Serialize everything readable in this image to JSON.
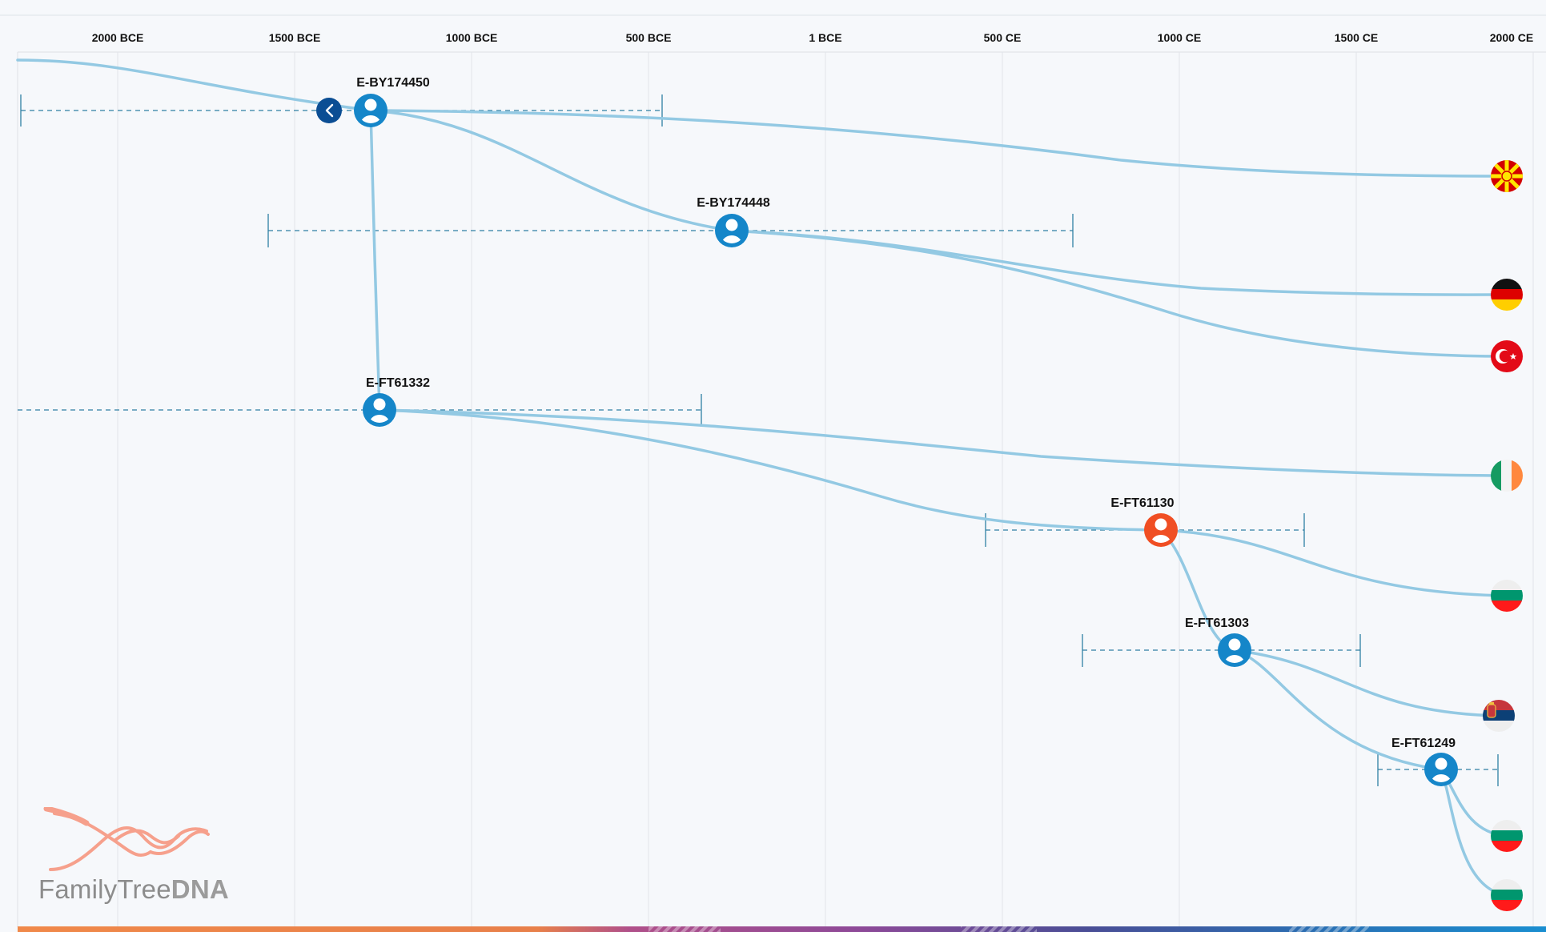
{
  "axis": {
    "ticks": [
      "2000 BCE",
      "1500 BCE",
      "1000 BCE",
      "500 BCE",
      "1 BCE",
      "500 CE",
      "1000 CE",
      "1500 CE",
      "2000 CE"
    ]
  },
  "nodes": [
    {
      "id": "E-BY174450",
      "label": "E-BY174450",
      "color": "#1586c9"
    },
    {
      "id": "E-BY174448",
      "label": "E-BY174448",
      "color": "#1586c9"
    },
    {
      "id": "E-FT61332",
      "label": "E-FT61332",
      "color": "#1586c9"
    },
    {
      "id": "E-FT61130",
      "label": "E-FT61130",
      "color": "#f04e23"
    },
    {
      "id": "E-FT61303",
      "label": "E-FT61303",
      "color": "#1586c9"
    },
    {
      "id": "E-FT61249",
      "label": "E-FT61249",
      "color": "#1586c9"
    }
  ],
  "flags": [
    {
      "country": "North Macedonia",
      "icon": "flag-north-macedonia-icon"
    },
    {
      "country": "Germany",
      "icon": "flag-germany-icon"
    },
    {
      "country": "Turkey",
      "icon": "flag-turkey-icon"
    },
    {
      "country": "Ireland",
      "icon": "flag-ireland-icon"
    },
    {
      "country": "Bulgaria",
      "icon": "flag-bulgaria-icon"
    },
    {
      "country": "Serbia",
      "icon": "flag-serbia-icon"
    },
    {
      "country": "Bulgaria",
      "icon": "flag-bulgaria-icon"
    },
    {
      "country": "Bulgaria",
      "icon": "flag-bulgaria-icon"
    }
  ],
  "brand": {
    "part1": "FamilyTree",
    "part2": "DNA"
  },
  "colors": {
    "branch": "#93c9e3",
    "node_blue": "#1586c9",
    "node_orange": "#f04e23",
    "back_button": "#0b4e94",
    "range_line": "#2f7fa3",
    "brand_helix": "#f6a08c"
  }
}
